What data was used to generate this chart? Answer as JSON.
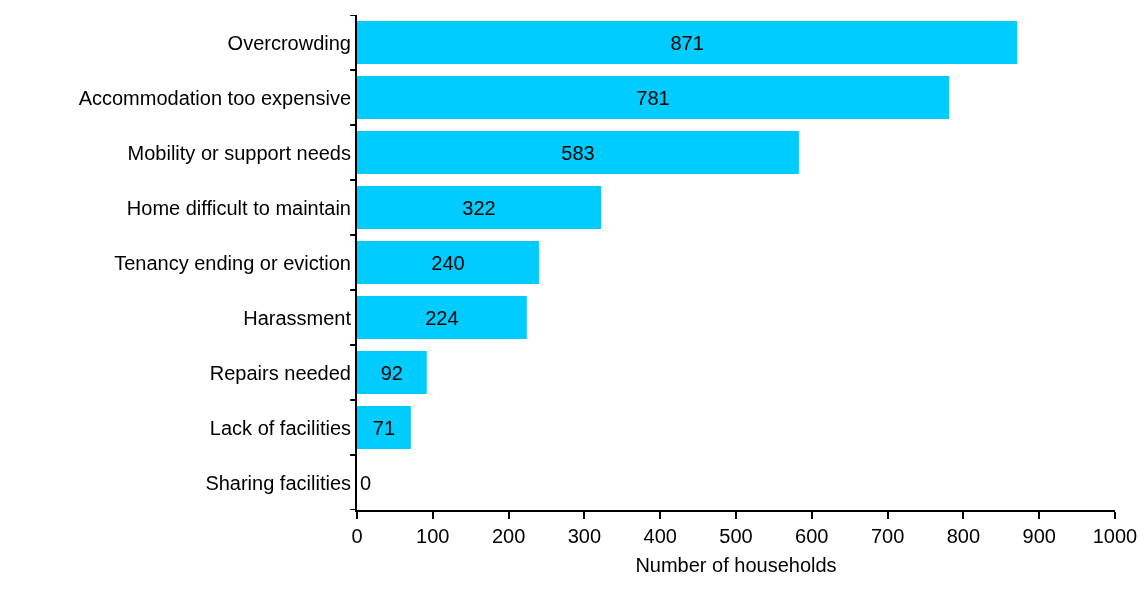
{
  "chart_data": {
    "type": "bar",
    "orientation": "horizontal",
    "xlabel": "Number of households",
    "categories": [
      "Overcrowding",
      "Accommodation too expensive",
      "Mobility or support needs",
      "Home difficult to maintain",
      "Tenancy ending or eviction",
      "Harassment",
      "Repairs needed",
      "Lack of facilities",
      "Sharing facilities"
    ],
    "values": [
      871,
      781,
      583,
      322,
      240,
      224,
      92,
      71,
      0
    ],
    "color": "#00ccff",
    "data_labels": true,
    "xlim": [
      0,
      1000
    ],
    "xticks": [
      0,
      100,
      200,
      300,
      400,
      500,
      600,
      700,
      800,
      900,
      1000
    ]
  }
}
